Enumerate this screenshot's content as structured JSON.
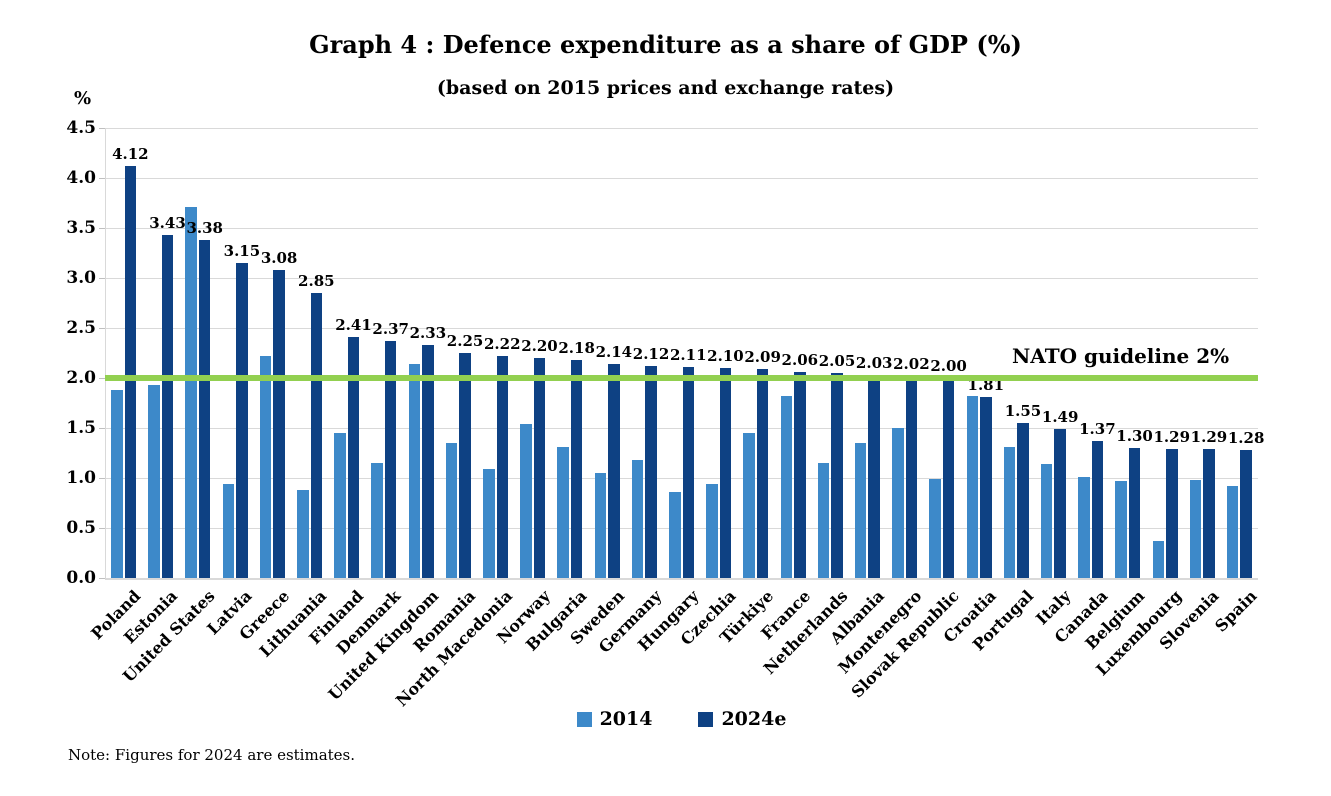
{
  "title": "Graph 4 : Defence expenditure as a share of GDP (%)",
  "subtitle": "(based on 2015 prices and exchange rates)",
  "y_axis_unit": "%",
  "note": "Note: Figures for 2024 are estimates.",
  "colors": {
    "series_2014": "#3D89C9",
    "series_2024e": "#0E4183",
    "guideline_green": "#92D050",
    "gridline_gray": "#D9D9D9",
    "text_black": "#000000"
  },
  "chart_data": {
    "type": "bar",
    "title": "Graph 4 : Defence expenditure as a share of GDP (%)",
    "subtitle": "(based on 2015 prices and exchange rates)",
    "ylabel": "%",
    "ylim": [
      0,
      4.5
    ],
    "ytick_step": 0.5,
    "yticks": [
      "0.0",
      "0.5",
      "1.0",
      "1.5",
      "2.0",
      "2.5",
      "3.0",
      "3.5",
      "4.0",
      "4.5"
    ],
    "grid": true,
    "legend_position": "bottom",
    "categories": [
      "Poland",
      "Estonia",
      "United States",
      "Latvia",
      "Greece",
      "Lithuania",
      "Finland",
      "Denmark",
      "United Kingdom",
      "Romania",
      "North Macedonia",
      "Norway",
      "Bulgaria",
      "Sweden",
      "Germany",
      "Hungary",
      "Czechia",
      "Türkiye",
      "France",
      "Netherlands",
      "Albania",
      "Montenegro",
      "Slovak Republic",
      "Croatia",
      "Portugal",
      "Italy",
      "Canada",
      "Belgium",
      "Luxembourg",
      "Slovenia",
      "Spain"
    ],
    "series": [
      {
        "name": "2014",
        "color": "#3D89C9",
        "data_labels": false,
        "values": [
          1.88,
          1.93,
          3.71,
          0.94,
          2.22,
          0.88,
          1.45,
          1.15,
          2.14,
          1.35,
          1.09,
          1.54,
          1.31,
          1.05,
          1.18,
          0.86,
          0.94,
          1.45,
          1.82,
          1.15,
          1.35,
          1.5,
          0.99,
          1.82,
          1.31,
          1.14,
          1.01,
          0.97,
          0.37,
          0.98,
          0.92
        ]
      },
      {
        "name": "2024e",
        "color": "#0E4183",
        "data_labels": true,
        "values": [
          4.12,
          3.43,
          3.38,
          3.15,
          3.08,
          2.85,
          2.41,
          2.37,
          2.33,
          2.25,
          2.22,
          2.2,
          2.18,
          2.14,
          2.12,
          2.11,
          2.1,
          2.09,
          2.06,
          2.05,
          2.03,
          2.02,
          2.0,
          1.81,
          1.55,
          1.49,
          1.37,
          1.3,
          1.29,
          1.29,
          1.28
        ]
      }
    ],
    "guideline": {
      "value": 2.0,
      "label": "NATO guideline 2%",
      "color": "#92D050"
    }
  }
}
